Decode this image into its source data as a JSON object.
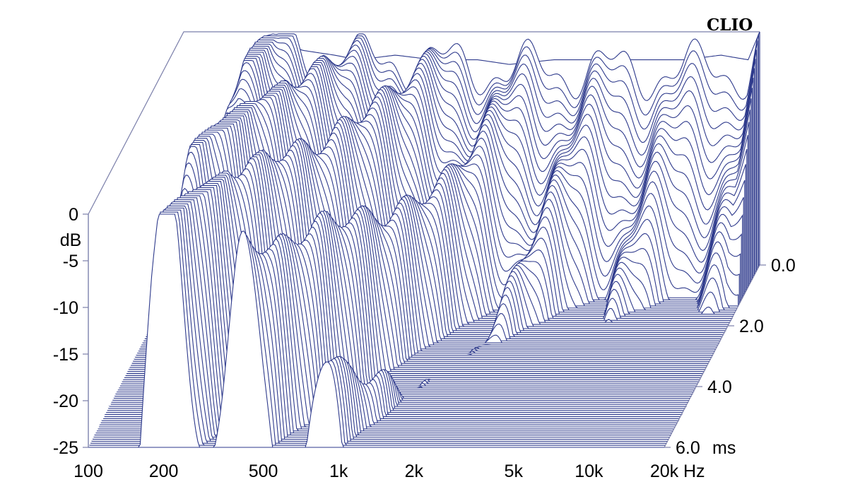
{
  "brand": "CLIO",
  "chart_data": {
    "type": "area",
    "description_kind": "cumulative spectral decay (waterfall)",
    "color": "#2e3a8c",
    "x_scale": "log",
    "x_range_hz": [
      100,
      20000
    ],
    "x_ticks": [
      {
        "value": 100,
        "label": "100"
      },
      {
        "value": 200,
        "label": "200"
      },
      {
        "value": 500,
        "label": "500"
      },
      {
        "value": 1000,
        "label": "1k"
      },
      {
        "value": 2000,
        "label": "2k"
      },
      {
        "value": 5000,
        "label": "5k"
      },
      {
        "value": 10000,
        "label": "10k"
      },
      {
        "value": 20000,
        "label": "20k"
      }
    ],
    "x_unit": "Hz",
    "y_range_db": [
      -25,
      0
    ],
    "y_ticks": [
      {
        "value": 0,
        "label": "0"
      },
      {
        "value": -5,
        "label": "-5"
      },
      {
        "value": -10,
        "label": "-10"
      },
      {
        "value": -15,
        "label": "-15"
      },
      {
        "value": -20,
        "label": "-20"
      },
      {
        "value": -25,
        "label": "-25"
      }
    ],
    "y_unit": "dB",
    "z_range_ms": [
      0,
      6
    ],
    "z_ticks": [
      {
        "value": 0,
        "label": "0.0"
      },
      {
        "value": 2,
        "label": "2.0"
      },
      {
        "value": 4,
        "label": "4.0"
      },
      {
        "value": 6,
        "label": "6.0"
      }
    ],
    "z_unit": "ms",
    "slices": 90,
    "initial_response_db": [
      {
        "hz": 100,
        "db": -25
      },
      {
        "hz": 150,
        "db": -25
      },
      {
        "hz": 160,
        "db": -14
      },
      {
        "hz": 180,
        "db": -6
      },
      {
        "hz": 200,
        "db": -2.5
      },
      {
        "hz": 230,
        "db": -1
      },
      {
        "hz": 300,
        "db": -2
      },
      {
        "hz": 400,
        "db": -2.5
      },
      {
        "hz": 500,
        "db": -3
      },
      {
        "hz": 700,
        "db": -2.5
      },
      {
        "hz": 1000,
        "db": -3
      },
      {
        "hz": 1500,
        "db": -3
      },
      {
        "hz": 2000,
        "db": -3.5
      },
      {
        "hz": 3000,
        "db": -3
      },
      {
        "hz": 5000,
        "db": -3
      },
      {
        "hz": 7000,
        "db": -3
      },
      {
        "hz": 10000,
        "db": -3
      },
      {
        "hz": 14000,
        "db": -2.5
      },
      {
        "hz": 18000,
        "db": -3
      },
      {
        "hz": 20000,
        "db": 0
      }
    ],
    "decay_ms_per_10db": [
      {
        "hz": 150,
        "ms": 6.0
      },
      {
        "hz": 200,
        "ms": 8.0
      },
      {
        "hz": 300,
        "ms": 5.0
      },
      {
        "hz": 400,
        "ms": 4.5
      },
      {
        "hz": 500,
        "ms": 3.5
      },
      {
        "hz": 700,
        "ms": 3.0
      },
      {
        "hz": 1000,
        "ms": 2.0
      },
      {
        "hz": 1500,
        "ms": 1.3
      },
      {
        "hz": 2000,
        "ms": 1.0
      },
      {
        "hz": 5000,
        "ms": 0.7
      },
      {
        "hz": 10000,
        "ms": 0.6
      },
      {
        "hz": 20000,
        "ms": 0.6
      }
    ]
  }
}
